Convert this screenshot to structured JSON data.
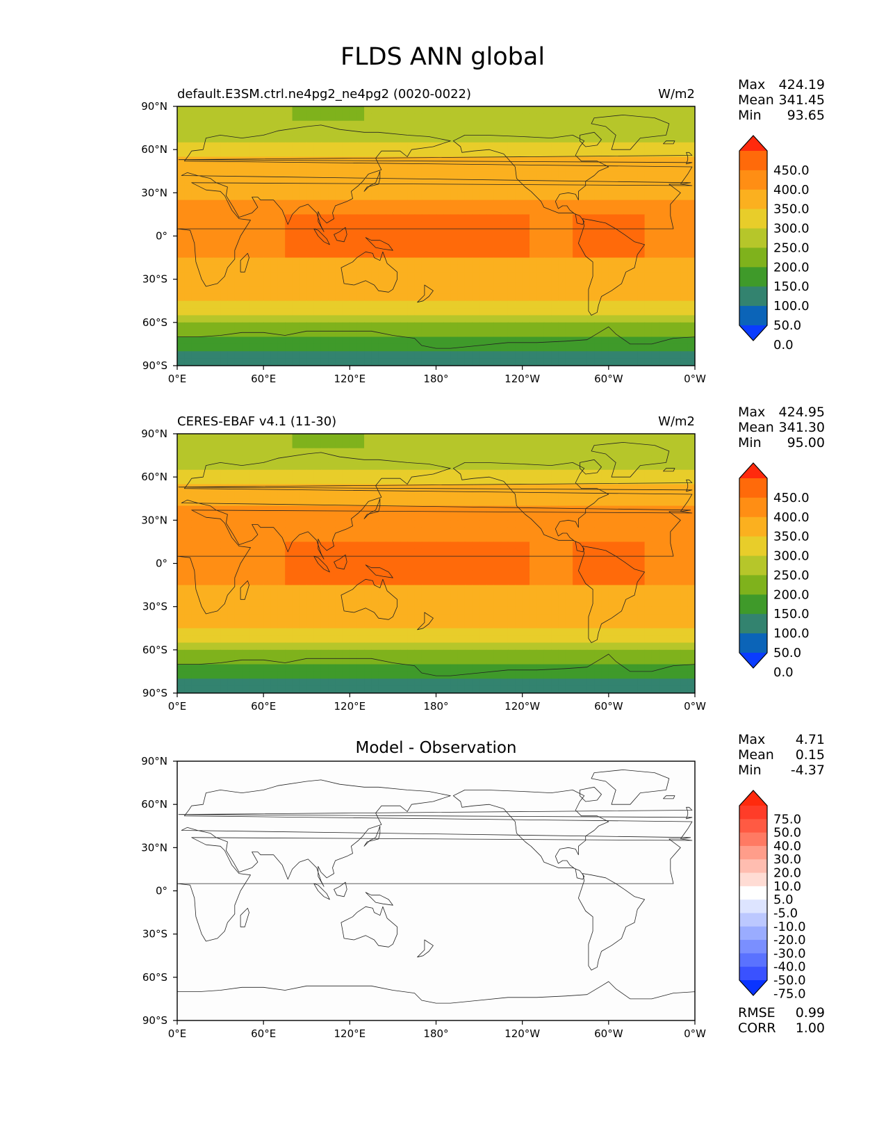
{
  "figure": {
    "title": "FLDS ANN global"
  },
  "panels": [
    {
      "left_title": "default.E3SM.ctrl.ne4pg2_ne4pg2 (0020-0022)",
      "units": "W/m2",
      "center_title": "",
      "stats": [
        {
          "label": "Max",
          "value": "424.19"
        },
        {
          "label": "Mean",
          "value": "341.45"
        },
        {
          "label": "Min",
          "value": "93.65"
        }
      ],
      "colorbar": {
        "labels": [
          "450.0",
          "400.0",
          "350.0",
          "300.0",
          "250.0",
          "200.0",
          "150.0",
          "100.0",
          "50.0",
          "0.0"
        ],
        "colors": [
          "#ff2a0d",
          "#ff6a0a",
          "#ff8e14",
          "#fbb01f",
          "#e8cd2a",
          "#b6c62a",
          "#7fb21c",
          "#3f9a2a",
          "#33836f",
          "#0b64b8",
          "#0a3cff"
        ]
      },
      "extra_stats": []
    },
    {
      "left_title": "CERES-EBAF v4.1 (11-30)",
      "units": "W/m2",
      "center_title": "",
      "stats": [
        {
          "label": "Max",
          "value": "424.95"
        },
        {
          "label": "Mean",
          "value": "341.30"
        },
        {
          "label": "Min",
          "value": "95.00"
        }
      ],
      "colorbar": {
        "labels": [
          "450.0",
          "400.0",
          "350.0",
          "300.0",
          "250.0",
          "200.0",
          "150.0",
          "100.0",
          "50.0",
          "0.0"
        ],
        "colors": [
          "#ff2a0d",
          "#ff6a0a",
          "#ff8e14",
          "#fbb01f",
          "#e8cd2a",
          "#b6c62a",
          "#7fb21c",
          "#3f9a2a",
          "#33836f",
          "#0b64b8",
          "#0a3cff"
        ]
      },
      "extra_stats": []
    },
    {
      "left_title": "",
      "units": "",
      "center_title": "Model - Observation",
      "stats": [
        {
          "label": "Max",
          "value": "4.71"
        },
        {
          "label": "Mean",
          "value": "0.15"
        },
        {
          "label": "Min",
          "value": "-4.37"
        }
      ],
      "colorbar": {
        "labels": [
          "75.0",
          "50.0",
          "40.0",
          "30.0",
          "20.0",
          "10.0",
          "5.0",
          "-5.0",
          "-10.0",
          "-20.0",
          "-30.0",
          "-40.0",
          "-50.0",
          "-75.0"
        ],
        "colors": [
          "#ff2a0d",
          "#ff3c28",
          "#ff5a43",
          "#ff7a63",
          "#ff9d8a",
          "#ffbdb0",
          "#ffdcd4",
          "#ffffff",
          "#dde4ff",
          "#bcc8ff",
          "#9aacff",
          "#7a8fff",
          "#5a72ff",
          "#3a52ff",
          "#0a34ff"
        ]
      },
      "extra_stats": [
        {
          "label": "RMSE",
          "value": "0.99"
        },
        {
          "label": "CORR",
          "value": "1.00"
        }
      ]
    }
  ],
  "map_axes": {
    "lat_ticks": [
      "90°N",
      "60°N",
      "30°N",
      "0°",
      "30°S",
      "60°S",
      "90°S"
    ],
    "lon_ticks": [
      "0°E",
      "60°E",
      "120°E",
      "180°",
      "120°W",
      "60°W",
      "0°W"
    ]
  }
}
